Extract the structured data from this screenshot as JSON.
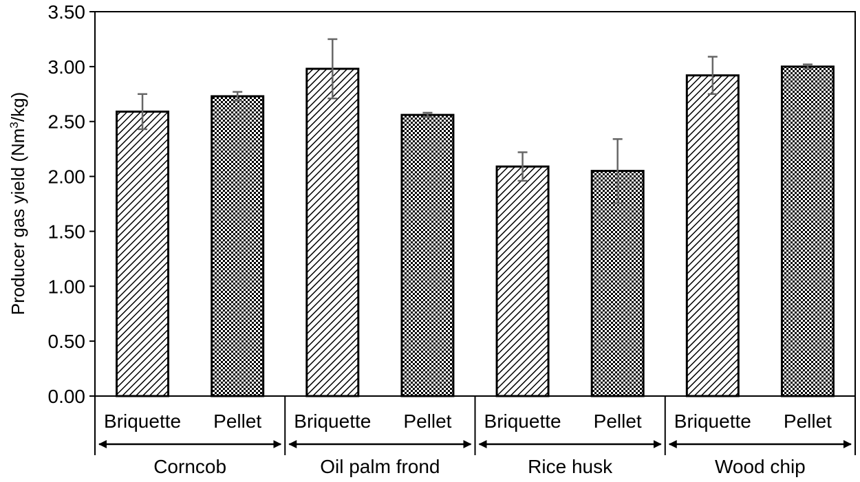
{
  "chart_data": {
    "type": "bar",
    "ylabel": "Producer gas yield (Nm3/kg)",
    "ylabel_parts": {
      "before": "Producer gas yield (Nm",
      "sup": "3",
      "after": "/kg)"
    },
    "ylim": [
      0,
      3.5
    ],
    "yticks": [
      "0.00",
      "0.50",
      "1.00",
      "1.50",
      "2.00",
      "2.50",
      "3.00",
      "3.50"
    ],
    "grid": false,
    "groups": [
      "Corncob",
      "Oil palm frond",
      "Rice husk",
      "Wood chip"
    ],
    "categories": [
      "Briquette",
      "Pellet",
      "Briquette",
      "Pellet",
      "Briquette",
      "Pellet",
      "Briquette",
      "Pellet"
    ],
    "bars": [
      {
        "group": "Corncob",
        "form": "Briquette",
        "value": 2.59,
        "error": 0.16,
        "pattern": "diagonal-hatch"
      },
      {
        "group": "Corncob",
        "form": "Pellet",
        "value": 2.73,
        "error": 0.04,
        "pattern": "dots"
      },
      {
        "group": "Oil palm frond",
        "form": "Briquette",
        "value": 2.98,
        "error": 0.27,
        "pattern": "diagonal-hatch"
      },
      {
        "group": "Oil palm frond",
        "form": "Pellet",
        "value": 2.56,
        "error": 0.02,
        "pattern": "dots"
      },
      {
        "group": "Rice husk",
        "form": "Briquette",
        "value": 2.09,
        "error": 0.13,
        "pattern": "diagonal-hatch"
      },
      {
        "group": "Rice husk",
        "form": "Pellet",
        "value": 2.05,
        "error": 0.29,
        "pattern": "dots"
      },
      {
        "group": "Wood chip",
        "form": "Briquette",
        "value": 2.92,
        "error": 0.17,
        "pattern": "diagonal-hatch"
      },
      {
        "group": "Wood chip",
        "form": "Pellet",
        "value": 3.0,
        "error": 0.02,
        "pattern": "dots"
      }
    ],
    "colors": {
      "bar_stroke": "#000000",
      "pattern": "#000000",
      "error_bar": "#666666",
      "background": "#ffffff"
    }
  }
}
